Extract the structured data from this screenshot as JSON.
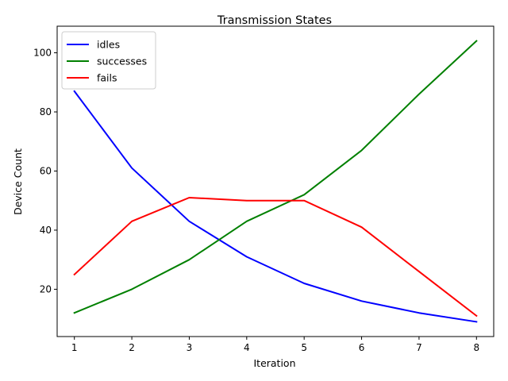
{
  "chart_data": {
    "type": "line",
    "title": "Transmission States",
    "xlabel": "Iteration",
    "ylabel": "Device Count",
    "x": [
      1,
      2,
      3,
      4,
      5,
      6,
      7,
      8
    ],
    "xlim": [
      0.7,
      8.3
    ],
    "ylim": [
      4,
      109
    ],
    "xticks": [
      "1",
      "2",
      "3",
      "4",
      "5",
      "6",
      "7",
      "8"
    ],
    "yticks": [
      "20",
      "40",
      "60",
      "80",
      "100"
    ],
    "grid": false,
    "legend_position": "top-left",
    "series": [
      {
        "name": "idles",
        "color": "#0000ff",
        "values": [
          87,
          61,
          43,
          31,
          22,
          16,
          12,
          9
        ]
      },
      {
        "name": "successes",
        "color": "#008000",
        "values": [
          12,
          20,
          30,
          43,
          52,
          67,
          86,
          104
        ]
      },
      {
        "name": "fails",
        "color": "#ff0000",
        "values": [
          25,
          43,
          51,
          50,
          50,
          41,
          26,
          11
        ]
      }
    ]
  }
}
